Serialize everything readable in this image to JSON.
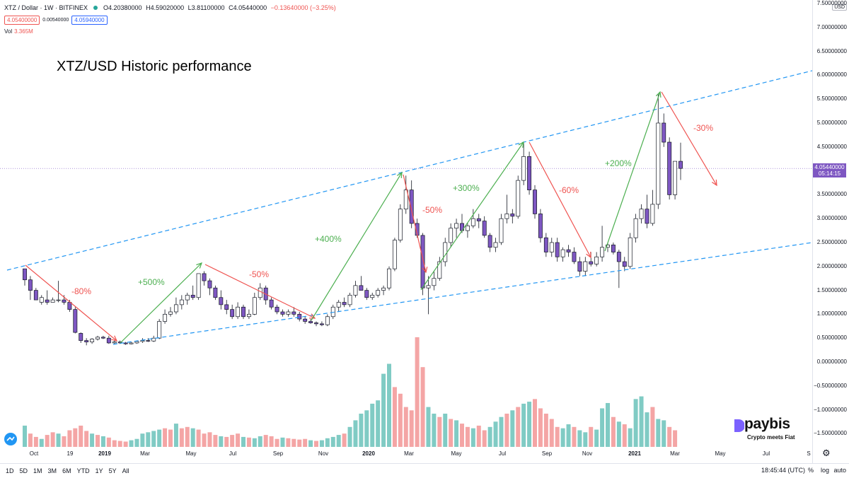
{
  "header": {
    "symbol": "XTZ / Dollar · 1W · BITFINEX",
    "open": "O4.20380000",
    "high": "H4.59020000",
    "low": "L3.81100000",
    "close": "C4.05440000",
    "change": "−0.13640000 (−3.25%)",
    "bid": "4.05400000",
    "spread": "0.00540000",
    "ask": "4.05940000",
    "vol_label": "Vol",
    "vol_value": "3.365M"
  },
  "title": "XTZ/USD Historic performance",
  "price_axis": {
    "currency": "USD",
    "ticks": [
      "7.50000000",
      "7.00000000",
      "6.50000000",
      "6.00000000",
      "5.50000000",
      "5.00000000",
      "4.50000000",
      "3.50000000",
      "3.00000000",
      "2.50000000",
      "2.00000000",
      "1.50000000",
      "1.00000000",
      "0.50000000",
      "0.00000000",
      "−0.50000000",
      "−1.00000000",
      "−1.50000000"
    ],
    "current_price": "4.05440000",
    "countdown": "05:14:15"
  },
  "time_axis": [
    "Oct",
    "19",
    "2019",
    "Mar",
    "May",
    "Jul",
    "Sep",
    "Nov",
    "2020",
    "Mar",
    "May",
    "Jul",
    "Sep",
    "Nov",
    "2021",
    "Mar",
    "May",
    "Jul",
    "S"
  ],
  "annotations": [
    {
      "text": "-80%",
      "color": "#ef5350"
    },
    {
      "text": "+500%",
      "color": "#4caf50"
    },
    {
      "text": "-50%",
      "color": "#ef5350"
    },
    {
      "text": "+400%",
      "color": "#4caf50"
    },
    {
      "text": "-50%",
      "color": "#ef5350"
    },
    {
      "text": "+300%",
      "color": "#4caf50"
    },
    {
      "text": "-60%",
      "color": "#ef5350"
    },
    {
      "text": "+200%",
      "color": "#4caf50"
    },
    {
      "text": "-30%",
      "color": "#ef5350"
    }
  ],
  "bottom_bar": {
    "ranges": [
      "1D",
      "5D",
      "1M",
      "3M",
      "6M",
      "YTD",
      "1Y",
      "5Y",
      "All"
    ],
    "clock": "18:45:44 (UTC)",
    "percent": "%",
    "log": "log",
    "auto": "auto"
  },
  "logo": {
    "name": "paybis",
    "tagline": "Crypto meets Fiat"
  },
  "colors": {
    "up_candle": "#ffffff",
    "down_candle": "#7e57c2",
    "vol_up": "#80cbc4",
    "vol_down": "#f4a5a5",
    "channel": "#2196f3",
    "up_arrow": "#4caf50",
    "down_arrow": "#ef5350"
  },
  "icons": [
    "settings-gear-icon",
    "tradingview-logo-icon",
    "paybis-logo-icon"
  ],
  "chart_data": {
    "type": "candlestick",
    "interval": "1W",
    "price_range": [
      -1.75,
      7.5
    ],
    "candles": [
      [
        1.95,
        1.95,
        1.6,
        1.72
      ],
      [
        1.72,
        1.8,
        1.3,
        1.5
      ],
      [
        1.5,
        1.55,
        1.3,
        1.3
      ],
      [
        1.25,
        1.4,
        1.2,
        1.35
      ],
      [
        1.3,
        1.5,
        1.2,
        1.25
      ],
      [
        1.25,
        1.35,
        1.25,
        1.3
      ],
      [
        1.3,
        1.7,
        1.25,
        1.3
      ],
      [
        1.3,
        1.4,
        1.2,
        1.25
      ],
      [
        1.25,
        1.3,
        1.05,
        1.1
      ],
      [
        1.1,
        1.15,
        0.6,
        0.62
      ],
      [
        0.6,
        0.62,
        0.4,
        0.45
      ],
      [
        0.45,
        0.5,
        0.35,
        0.42
      ],
      [
        0.42,
        0.5,
        0.38,
        0.48
      ],
      [
        0.48,
        0.55,
        0.45,
        0.52
      ],
      [
        0.52,
        0.55,
        0.48,
        0.5
      ],
      [
        0.5,
        0.55,
        0.38,
        0.4
      ],
      [
        0.4,
        0.45,
        0.38,
        0.42
      ],
      [
        0.42,
        0.45,
        0.38,
        0.4
      ],
      [
        0.4,
        0.42,
        0.36,
        0.38
      ],
      [
        0.38,
        0.42,
        0.37,
        0.4
      ],
      [
        0.4,
        0.45,
        0.38,
        0.43
      ],
      [
        0.43,
        0.5,
        0.4,
        0.45
      ],
      [
        0.45,
        0.5,
        0.42,
        0.44
      ],
      [
        0.44,
        0.55,
        0.42,
        0.5
      ],
      [
        0.5,
        0.9,
        0.48,
        0.85
      ],
      [
        0.85,
        1.1,
        0.8,
        1.0
      ],
      [
        1.0,
        1.15,
        0.95,
        1.05
      ],
      [
        1.05,
        1.35,
        1.0,
        1.2
      ],
      [
        1.2,
        1.4,
        1.1,
        1.3
      ],
      [
        1.3,
        1.45,
        1.2,
        1.4
      ],
      [
        1.4,
        1.6,
        1.3,
        1.35
      ],
      [
        1.35,
        1.85,
        1.3,
        1.85
      ],
      [
        1.85,
        1.9,
        1.6,
        1.7
      ],
      [
        1.7,
        1.75,
        1.4,
        1.55
      ],
      [
        1.55,
        1.6,
        1.3,
        1.35
      ],
      [
        1.35,
        1.5,
        1.1,
        1.2
      ],
      [
        1.2,
        1.3,
        1.0,
        1.1
      ],
      [
        1.1,
        1.2,
        0.9,
        0.95
      ],
      [
        0.95,
        1.25,
        0.9,
        1.15
      ],
      [
        1.15,
        1.2,
        0.9,
        0.95
      ],
      [
        0.95,
        1.1,
        0.9,
        1.0
      ],
      [
        1.0,
        1.45,
        0.98,
        1.35
      ],
      [
        1.35,
        1.65,
        1.3,
        1.55
      ],
      [
        1.55,
        1.6,
        1.2,
        1.3
      ],
      [
        1.3,
        1.35,
        1.1,
        1.15
      ],
      [
        1.15,
        1.2,
        1.0,
        1.05
      ],
      [
        1.05,
        1.1,
        0.95,
        1.0
      ],
      [
        1.0,
        1.1,
        0.95,
        1.05
      ],
      [
        1.05,
        1.15,
        0.95,
        1.0
      ],
      [
        1.0,
        1.05,
        0.85,
        0.9
      ],
      [
        0.9,
        0.95,
        0.8,
        0.85
      ],
      [
        0.85,
        0.9,
        0.8,
        0.82
      ],
      [
        0.82,
        0.85,
        0.75,
        0.8
      ],
      [
        0.8,
        0.85,
        0.75,
        0.78
      ],
      [
        0.78,
        1.0,
        0.75,
        0.95
      ],
      [
        0.95,
        1.2,
        0.9,
        1.15
      ],
      [
        1.15,
        1.3,
        1.05,
        1.25
      ],
      [
        1.25,
        1.35,
        1.15,
        1.2
      ],
      [
        1.2,
        1.45,
        1.15,
        1.4
      ],
      [
        1.4,
        1.7,
        1.35,
        1.6
      ],
      [
        1.6,
        1.8,
        1.5,
        1.5
      ],
      [
        1.5,
        1.55,
        1.3,
        1.35
      ],
      [
        1.35,
        1.45,
        1.3,
        1.4
      ],
      [
        1.4,
        1.55,
        1.35,
        1.5
      ],
      [
        1.5,
        1.6,
        1.4,
        1.55
      ],
      [
        1.55,
        2.0,
        1.5,
        1.95
      ],
      [
        1.95,
        2.6,
        1.9,
        2.55
      ],
      [
        2.55,
        3.3,
        2.5,
        3.2
      ],
      [
        3.2,
        3.9,
        3.1,
        3.6
      ],
      [
        3.6,
        3.8,
        2.8,
        2.9
      ],
      [
        2.9,
        3.0,
        2.6,
        2.65
      ],
      [
        2.65,
        2.7,
        1.4,
        1.55
      ],
      [
        1.55,
        1.8,
        1.0,
        1.6
      ],
      [
        1.6,
        1.9,
        1.5,
        1.75
      ],
      [
        1.75,
        2.2,
        1.7,
        2.1
      ],
      [
        2.1,
        2.6,
        2.0,
        2.5
      ],
      [
        2.5,
        2.9,
        2.4,
        2.8
      ],
      [
        2.8,
        3.0,
        2.6,
        2.9
      ],
      [
        2.9,
        3.1,
        2.7,
        2.75
      ],
      [
        2.75,
        2.9,
        2.6,
        2.85
      ],
      [
        2.85,
        3.2,
        2.8,
        3.0
      ],
      [
        3.0,
        3.1,
        2.8,
        2.95
      ],
      [
        2.95,
        3.05,
        2.6,
        2.65
      ],
      [
        2.65,
        2.7,
        2.3,
        2.4
      ],
      [
        2.4,
        2.6,
        2.3,
        2.5
      ],
      [
        2.5,
        3.1,
        2.45,
        3.0
      ],
      [
        3.0,
        3.5,
        2.9,
        3.1
      ],
      [
        3.1,
        3.2,
        2.9,
        3.05
      ],
      [
        3.05,
        3.9,
        3.0,
        3.8
      ],
      [
        3.8,
        4.6,
        3.7,
        4.3
      ],
      [
        4.3,
        4.4,
        3.5,
        3.6
      ],
      [
        3.6,
        3.7,
        3.0,
        3.1
      ],
      [
        3.1,
        3.2,
        2.5,
        2.6
      ],
      [
        2.6,
        2.7,
        2.2,
        2.3
      ],
      [
        2.3,
        2.6,
        2.2,
        2.5
      ],
      [
        2.5,
        2.6,
        2.1,
        2.2
      ],
      [
        2.2,
        2.4,
        2.1,
        2.35
      ],
      [
        2.35,
        2.45,
        2.2,
        2.3
      ],
      [
        2.3,
        2.4,
        2.05,
        2.1
      ],
      [
        2.1,
        2.2,
        1.8,
        1.9
      ],
      [
        1.9,
        2.2,
        1.8,
        2.1
      ],
      [
        2.1,
        2.3,
        2.0,
        2.05
      ],
      [
        2.05,
        2.3,
        2.0,
        2.2
      ],
      [
        2.2,
        2.85,
        2.1,
        2.4
      ],
      [
        2.4,
        2.5,
        2.3,
        2.45
      ],
      [
        2.45,
        2.5,
        2.25,
        2.3
      ],
      [
        2.3,
        2.35,
        1.55,
        2.1
      ],
      [
        2.1,
        2.2,
        1.9,
        2.0
      ],
      [
        2.0,
        2.7,
        1.95,
        2.6
      ],
      [
        2.6,
        3.1,
        2.5,
        3.0
      ],
      [
        3.0,
        3.3,
        2.9,
        3.2
      ],
      [
        3.2,
        3.5,
        2.8,
        2.9
      ],
      [
        2.9,
        3.6,
        2.85,
        3.3
      ],
      [
        3.3,
        5.6,
        3.2,
        5.0
      ],
      [
        5.0,
        5.2,
        4.5,
        4.6
      ],
      [
        4.6,
        4.7,
        3.4,
        3.5
      ],
      [
        3.5,
        4.2,
        3.4,
        4.2
      ],
      [
        4.2,
        4.59,
        3.81,
        4.05
      ]
    ],
    "volume": [
      [
        0.32,
        0
      ],
      [
        0.2,
        1
      ],
      [
        0.15,
        1
      ],
      [
        0.12,
        0
      ],
      [
        0.18,
        1
      ],
      [
        0.22,
        1
      ],
      [
        0.2,
        0
      ],
      [
        0.16,
        1
      ],
      [
        0.25,
        1
      ],
      [
        0.28,
        1
      ],
      [
        0.32,
        1
      ],
      [
        0.24,
        1
      ],
      [
        0.2,
        0
      ],
      [
        0.18,
        1
      ],
      [
        0.16,
        0
      ],
      [
        0.14,
        1
      ],
      [
        0.1,
        1
      ],
      [
        0.09,
        1
      ],
      [
        0.08,
        1
      ],
      [
        0.1,
        0
      ],
      [
        0.12,
        0
      ],
      [
        0.2,
        0
      ],
      [
        0.22,
        0
      ],
      [
        0.24,
        0
      ],
      [
        0.26,
        0
      ],
      [
        0.28,
        1
      ],
      [
        0.26,
        1
      ],
      [
        0.35,
        0
      ],
      [
        0.28,
        1
      ],
      [
        0.3,
        1
      ],
      [
        0.28,
        0
      ],
      [
        0.26,
        1
      ],
      [
        0.2,
        1
      ],
      [
        0.22,
        1
      ],
      [
        0.18,
        1
      ],
      [
        0.16,
        0
      ],
      [
        0.15,
        1
      ],
      [
        0.18,
        1
      ],
      [
        0.2,
        1
      ],
      [
        0.15,
        0
      ],
      [
        0.14,
        1
      ],
      [
        0.13,
        0
      ],
      [
        0.16,
        0
      ],
      [
        0.18,
        1
      ],
      [
        0.16,
        1
      ],
      [
        0.12,
        1
      ],
      [
        0.14,
        0
      ],
      [
        0.13,
        1
      ],
      [
        0.12,
        1
      ],
      [
        0.11,
        1
      ],
      [
        0.12,
        1
      ],
      [
        0.1,
        0
      ],
      [
        0.09,
        1
      ],
      [
        0.1,
        0
      ],
      [
        0.13,
        0
      ],
      [
        0.15,
        0
      ],
      [
        0.18,
        0
      ],
      [
        0.2,
        1
      ],
      [
        0.3,
        0
      ],
      [
        0.4,
        0
      ],
      [
        0.5,
        0
      ],
      [
        0.55,
        0
      ],
      [
        0.65,
        0
      ],
      [
        0.7,
        0
      ],
      [
        1.1,
        0
      ],
      [
        1.25,
        0
      ],
      [
        0.9,
        1
      ],
      [
        0.8,
        1
      ],
      [
        0.6,
        1
      ],
      [
        0.55,
        1
      ],
      [
        1.65,
        1
      ],
      [
        1.2,
        1
      ],
      [
        0.6,
        0
      ],
      [
        0.5,
        0
      ],
      [
        0.45,
        1
      ],
      [
        0.5,
        0
      ],
      [
        0.42,
        1
      ],
      [
        0.4,
        0
      ],
      [
        0.35,
        1
      ],
      [
        0.3,
        1
      ],
      [
        0.28,
        0
      ],
      [
        0.32,
        1
      ],
      [
        0.25,
        1
      ],
      [
        0.3,
        0
      ],
      [
        0.38,
        0
      ],
      [
        0.45,
        0
      ],
      [
        0.5,
        1
      ],
      [
        0.55,
        0
      ],
      [
        0.6,
        1
      ],
      [
        0.65,
        0
      ],
      [
        0.68,
        0
      ],
      [
        0.72,
        1
      ],
      [
        0.58,
        1
      ],
      [
        0.5,
        1
      ],
      [
        0.42,
        1
      ],
      [
        0.3,
        1
      ],
      [
        0.28,
        0
      ],
      [
        0.34,
        0
      ],
      [
        0.3,
        1
      ],
      [
        0.25,
        0
      ],
      [
        0.22,
        0
      ],
      [
        0.3,
        1
      ],
      [
        0.26,
        0
      ],
      [
        0.58,
        0
      ],
      [
        0.66,
        0
      ],
      [
        0.45,
        1
      ],
      [
        0.38,
        0
      ],
      [
        0.34,
        1
      ],
      [
        0.28,
        0
      ],
      [
        0.72,
        0
      ],
      [
        0.76,
        0
      ],
      [
        0.52,
        0
      ],
      [
        0.6,
        1
      ],
      [
        0.42,
        0
      ],
      [
        0.4,
        0
      ],
      [
        0.3,
        1
      ],
      [
        0.25,
        1
      ]
    ]
  }
}
